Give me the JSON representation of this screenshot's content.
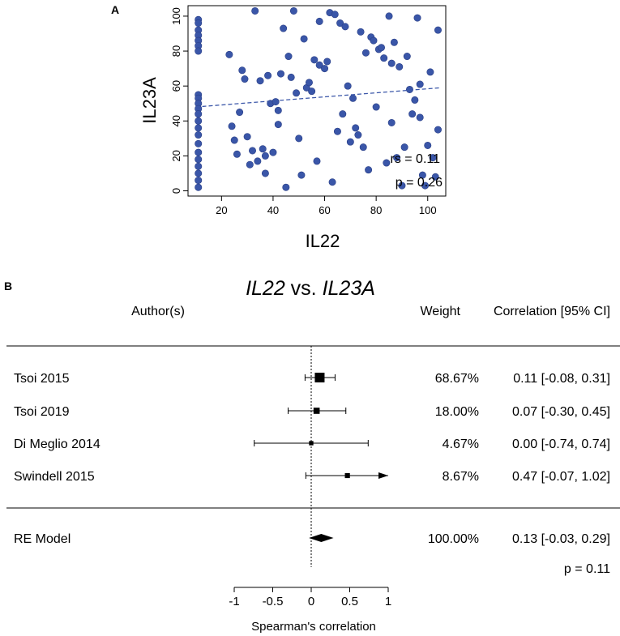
{
  "colors": {
    "point": "#3a56a8",
    "point_stroke": "#2a3f86",
    "trend": "#3a56a8",
    "ink": "#000000"
  },
  "chart_data": [
    {
      "panel_label": "A",
      "type": "scatter",
      "xlabel": "IL22",
      "ylabel": "IL23A",
      "xlim": [
        7,
        107
      ],
      "ylim": [
        -3,
        106
      ],
      "xticks": [
        20,
        40,
        60,
        80,
        100
      ],
      "yticks": [
        0,
        20,
        40,
        60,
        80,
        100
      ],
      "trendline": {
        "x0": 10,
        "y0": 48,
        "x1": 105,
        "y1": 59
      },
      "annotation_rs": "rs = 0.11",
      "annotation_p": "p = 0.26",
      "points": [
        [
          11,
          98
        ],
        [
          11,
          96
        ],
        [
          11,
          92
        ],
        [
          11,
          89
        ],
        [
          11,
          86
        ],
        [
          11,
          83
        ],
        [
          11,
          80
        ],
        [
          11,
          55
        ],
        [
          11,
          53
        ],
        [
          11,
          50
        ],
        [
          11,
          47
        ],
        [
          11,
          44
        ],
        [
          11,
          40
        ],
        [
          11,
          36
        ],
        [
          11,
          32
        ],
        [
          11,
          27
        ],
        [
          11,
          22
        ],
        [
          11,
          18
        ],
        [
          11,
          14
        ],
        [
          11,
          10
        ],
        [
          11,
          6
        ],
        [
          11,
          2
        ],
        [
          23,
          78
        ],
        [
          24,
          37
        ],
        [
          25,
          29
        ],
        [
          26,
          21
        ],
        [
          27,
          45
        ],
        [
          28,
          69
        ],
        [
          29,
          64
        ],
        [
          30,
          31
        ],
        [
          31,
          15
        ],
        [
          32,
          23
        ],
        [
          33,
          103
        ],
        [
          34,
          17
        ],
        [
          35,
          63
        ],
        [
          36,
          24
        ],
        [
          37,
          20
        ],
        [
          37,
          10
        ],
        [
          38,
          66
        ],
        [
          39,
          50
        ],
        [
          40,
          22
        ],
        [
          41,
          51
        ],
        [
          42,
          46
        ],
        [
          42,
          38
        ],
        [
          43,
          67
        ],
        [
          44,
          93
        ],
        [
          45,
          2
        ],
        [
          46,
          77
        ],
        [
          47,
          65
        ],
        [
          48,
          103
        ],
        [
          49,
          56
        ],
        [
          50,
          30
        ],
        [
          51,
          9
        ],
        [
          52,
          87
        ],
        [
          53,
          59
        ],
        [
          54,
          62
        ],
        [
          55,
          57
        ],
        [
          56,
          75
        ],
        [
          57,
          17
        ],
        [
          58,
          72
        ],
        [
          58,
          97
        ],
        [
          60,
          70
        ],
        [
          61,
          74
        ],
        [
          62,
          102
        ],
        [
          63,
          5
        ],
        [
          64,
          101
        ],
        [
          65,
          34
        ],
        [
          66,
          96
        ],
        [
          67,
          44
        ],
        [
          68,
          94
        ],
        [
          69,
          60
        ],
        [
          70,
          28
        ],
        [
          71,
          53
        ],
        [
          72,
          36
        ],
        [
          73,
          32
        ],
        [
          74,
          91
        ],
        [
          75,
          25
        ],
        [
          76,
          79
        ],
        [
          77,
          12
        ],
        [
          78,
          88
        ],
        [
          79,
          86
        ],
        [
          80,
          48
        ],
        [
          81,
          81
        ],
        [
          82,
          82
        ],
        [
          83,
          76
        ],
        [
          84,
          16
        ],
        [
          85,
          100
        ],
        [
          86,
          73
        ],
        [
          86,
          39
        ],
        [
          87,
          85
        ],
        [
          88,
          19
        ],
        [
          89,
          71
        ],
        [
          90,
          3
        ],
        [
          91,
          25
        ],
        [
          92,
          77
        ],
        [
          93,
          58
        ],
        [
          94,
          44
        ],
        [
          95,
          52
        ],
        [
          96,
          99
        ],
        [
          97,
          42
        ],
        [
          97,
          61
        ],
        [
          98,
          9
        ],
        [
          99,
          3
        ],
        [
          100,
          26
        ],
        [
          101,
          68
        ],
        [
          102,
          19
        ],
        [
          103,
          8
        ],
        [
          104,
          35
        ],
        [
          104,
          92
        ]
      ]
    },
    {
      "panel_label": "B",
      "type": "forest",
      "title_gene1": "IL22",
      "title_vs": " vs. ",
      "title_gene2": "IL23A",
      "header_author": "Author(s)",
      "header_weight": "Weight",
      "header_ci": "Correlation [95% CI]",
      "xlabel": "Spearman's correlation",
      "xlim": [
        -1,
        1
      ],
      "xticks": [
        -1,
        -0.5,
        0,
        0.5,
        1
      ],
      "xtick_labels": [
        "-1",
        "-0.5",
        "0",
        "0.5",
        "1"
      ],
      "studies": [
        {
          "name": "Tsoi 2015",
          "weight": "68.67%",
          "ci_text": "0.11 [-0.08, 0.31]",
          "est": 0.11,
          "lo": -0.08,
          "hi": 0.31,
          "w": 68.67,
          "arrow": false
        },
        {
          "name": "Tsoi 2019",
          "weight": "18.00%",
          "ci_text": "0.07 [-0.30, 0.45]",
          "est": 0.07,
          "lo": -0.3,
          "hi": 0.45,
          "w": 18.0,
          "arrow": false
        },
        {
          "name": "Di Meglio 2014",
          "weight": "4.67%",
          "ci_text": "0.00 [-0.74, 0.74]",
          "est": 0.0,
          "lo": -0.74,
          "hi": 0.74,
          "w": 4.67,
          "arrow": false
        },
        {
          "name": "Swindell 2015",
          "weight": "8.67%",
          "ci_text": "0.47 [-0.07, 1.02]",
          "est": 0.47,
          "lo": -0.07,
          "hi": 1.02,
          "w": 8.67,
          "arrow": true
        }
      ],
      "summary": {
        "name": "RE Model",
        "weight": "100.00%",
        "ci_text": "0.13 [-0.03, 0.29]",
        "est": 0.13,
        "lo": -0.03,
        "hi": 0.29
      },
      "p_value": "p = 0.11"
    }
  ]
}
